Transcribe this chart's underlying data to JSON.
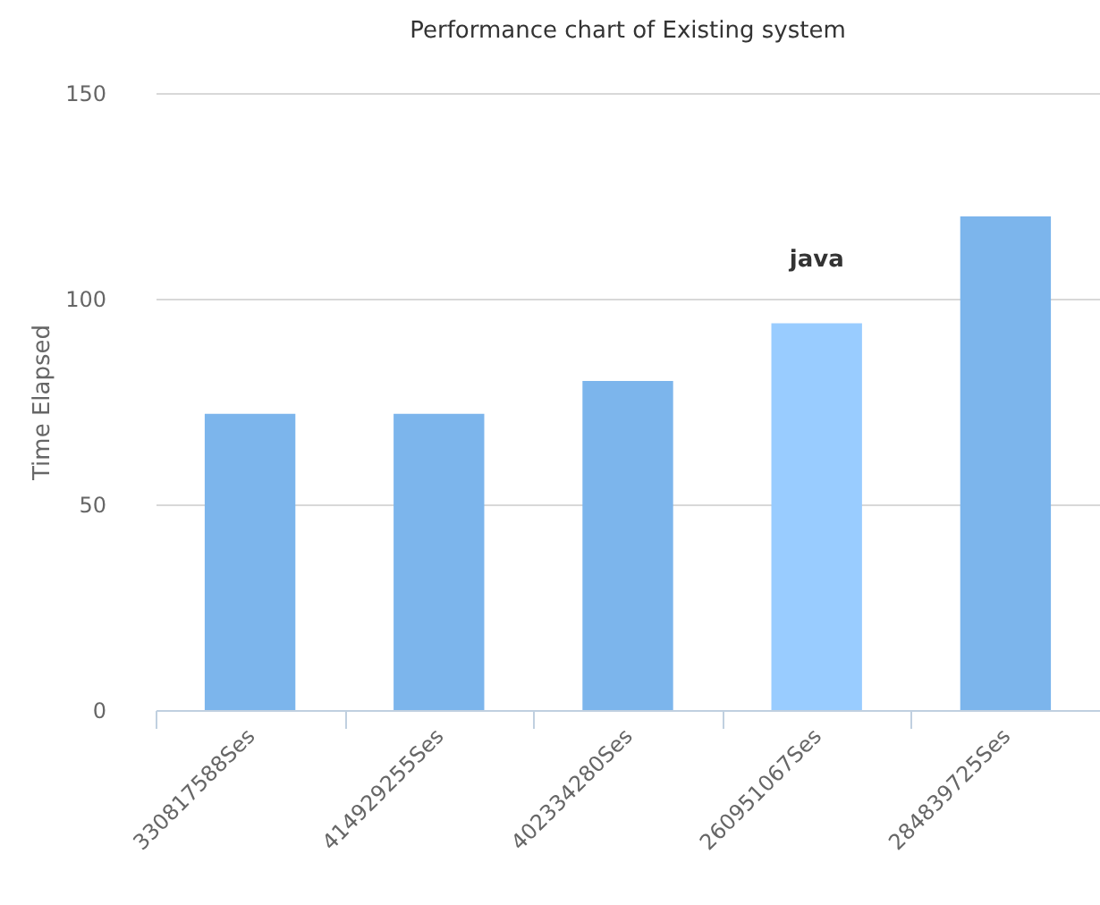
{
  "chart_data": {
    "type": "bar",
    "title": "Performance chart of Existing system",
    "ylabel": "Time Elapsed",
    "categories": [
      "330817588Ses",
      "414929255Ses",
      "402334280Ses",
      "260951067Ses",
      "284839725Ses"
    ],
    "values": [
      72,
      72,
      80,
      94,
      120
    ],
    "colors": [
      "#7cb5ec",
      "#7cb5ec",
      "#7cb5ec",
      "#99ccff",
      "#7cb5ec"
    ],
    "ylim": [
      0,
      150
    ],
    "yticks": [
      0,
      50,
      100,
      150
    ],
    "grid": "y",
    "annotations": [
      {
        "text": "java",
        "x": "260951067Ses",
        "y": 94
      }
    ]
  }
}
